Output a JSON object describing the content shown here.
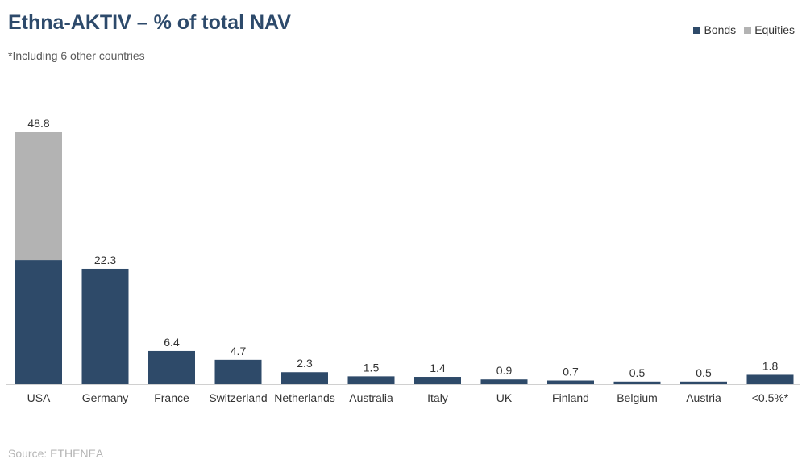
{
  "chart_data": {
    "type": "bar",
    "stacked": true,
    "title": "Ethna-AKTIV – % of total NAV",
    "subtitle": "*Including 6 other countries",
    "source": "Source: ETHENEA",
    "categories": [
      "USA",
      "Germany",
      "France",
      "Switzerland",
      "Netherlands",
      "Australia",
      "Italy",
      "UK",
      "Finland",
      "Belgium",
      "Austria",
      "<0.5%*"
    ],
    "series": [
      {
        "name": "Bonds",
        "color": "#2e4a69",
        "values": [
          24.0,
          22.3,
          6.4,
          4.7,
          2.3,
          1.5,
          1.4,
          0.9,
          0.7,
          0.5,
          0.5,
          1.8
        ]
      },
      {
        "name": "Equities",
        "color": "#b3b3b3",
        "values": [
          24.8,
          0,
          0,
          0,
          0,
          0,
          0,
          0,
          0,
          0,
          0,
          0
        ]
      }
    ],
    "totals": [
      "48.8",
      "22.3",
      "6.4",
      "4.7",
      "2.3",
      "1.5",
      "1.4",
      "0.9",
      "0.7",
      "0.5",
      "0.5",
      "1.8"
    ],
    "ylim": [
      0,
      50
    ],
    "grid": false,
    "legend_position": "top-right"
  }
}
